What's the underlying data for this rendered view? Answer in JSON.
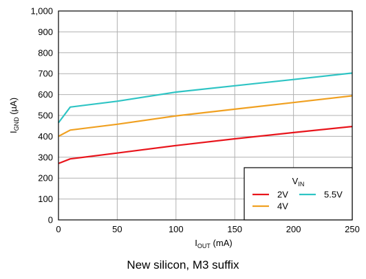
{
  "caption": "New silicon, M3 suffix",
  "chart_data": {
    "type": "line",
    "xlabel": {
      "main": "I",
      "sub": "OUT",
      "unit": " (mA)"
    },
    "ylabel": {
      "main": "I",
      "sub": "GND",
      "unit": " (µA)"
    },
    "xlim": [
      0,
      250
    ],
    "ylim": [
      0,
      1000
    ],
    "xticks": [
      0,
      50,
      100,
      150,
      200,
      250
    ],
    "yticks": [
      0,
      100,
      200,
      300,
      400,
      500,
      600,
      700,
      800,
      900,
      1000
    ],
    "xtick_labels": [
      "0",
      "50",
      "100",
      "150",
      "200",
      "250"
    ],
    "ytick_labels": [
      "0",
      "100",
      "200",
      "300",
      "400",
      "500",
      "600",
      "700",
      "800",
      "900",
      "1,000"
    ],
    "grid": true,
    "legend": {
      "title_main": "V",
      "title_sub": "IN",
      "position": "bottom-right"
    },
    "series": [
      {
        "name": "2V",
        "color": "#e8141b",
        "x": [
          0,
          10,
          50,
          100,
          150,
          200,
          250
        ],
        "y": [
          270,
          292,
          320,
          356,
          388,
          418,
          447
        ]
      },
      {
        "name": "4V",
        "color": "#f0a020",
        "x": [
          0,
          10,
          50,
          100,
          150,
          200,
          250
        ],
        "y": [
          400,
          430,
          458,
          498,
          530,
          562,
          594
        ]
      },
      {
        "name": "5.5V",
        "color": "#2ec4c4",
        "x": [
          0,
          10,
          50,
          100,
          150,
          200,
          250
        ],
        "y": [
          465,
          540,
          568,
          612,
          642,
          672,
          703
        ]
      }
    ]
  }
}
